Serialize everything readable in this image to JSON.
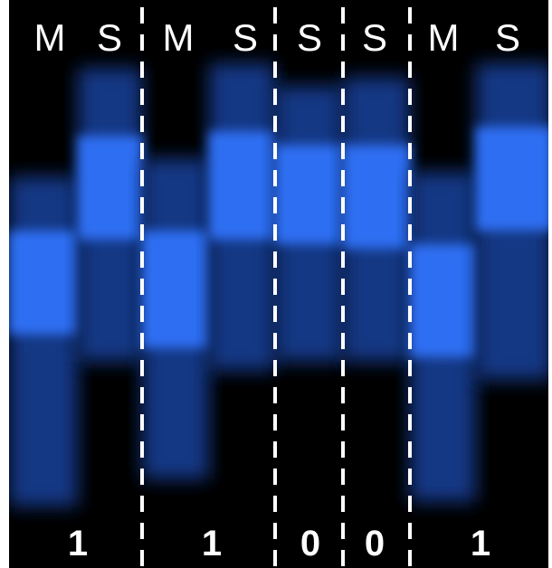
{
  "top_labels": [
    "M",
    "S",
    "M",
    "S",
    "S",
    "S",
    "M",
    "S"
  ],
  "bottom_labels": [
    "1",
    "1",
    "0",
    "0",
    "1"
  ]
}
